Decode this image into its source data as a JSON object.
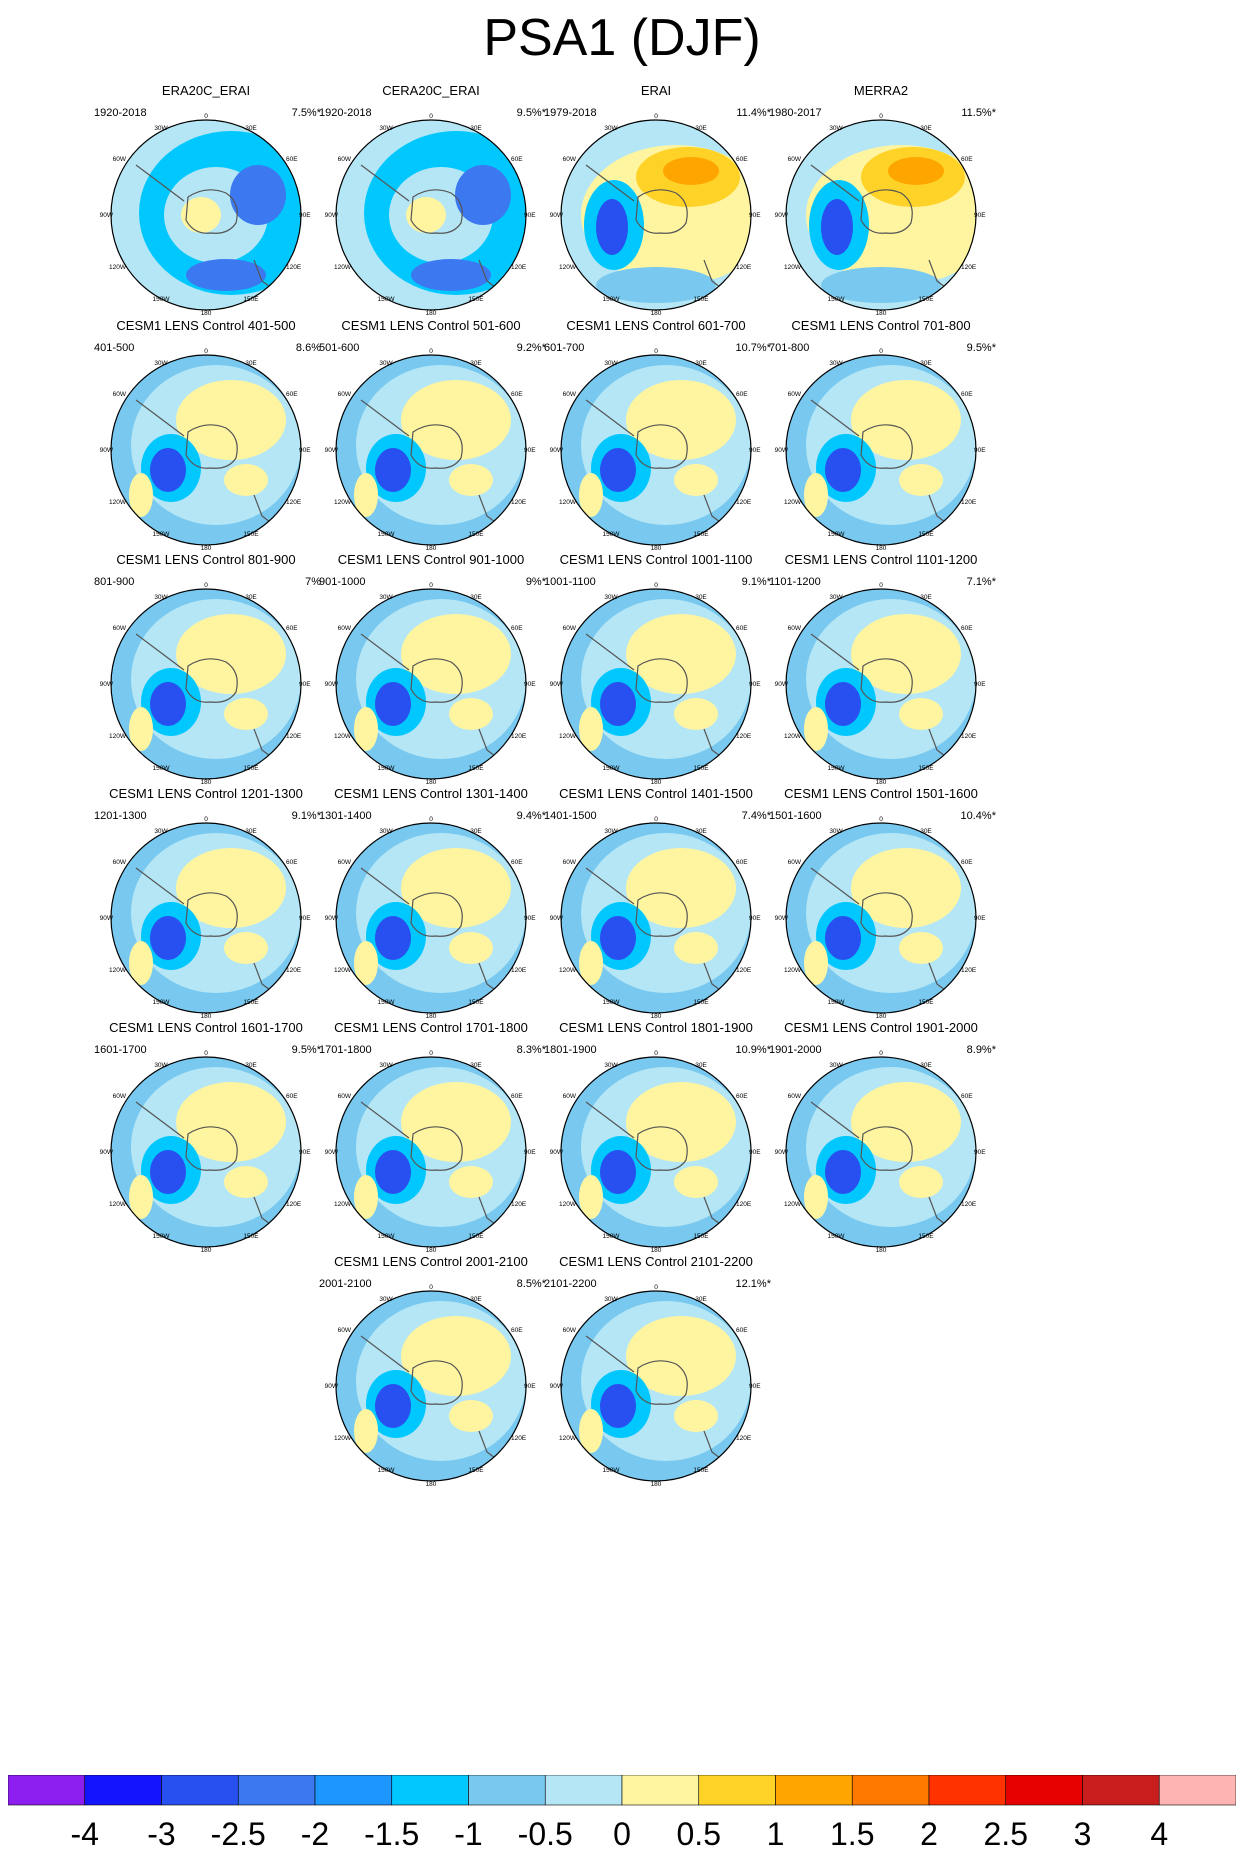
{
  "page_title": "PSA1 (DJF)",
  "panels": [
    {
      "title": "ERA20C_ERAI",
      "years": "1920-2018",
      "variance": "7.5%*",
      "pattern": "ring"
    },
    {
      "title": "CERA20C_ERAI",
      "years": "1920-2018",
      "variance": "9.5%*",
      "pattern": "ring"
    },
    {
      "title": "ERAI",
      "years": "1979-2018",
      "variance": "11.4%*",
      "pattern": "reanalysis"
    },
    {
      "title": "MERRA2",
      "years": "1980-2017",
      "variance": "11.5%*",
      "pattern": "reanalysis"
    },
    {
      "title": "CESM1 LENS Control 401-500",
      "years": "401-500",
      "variance": "8.6%",
      "pattern": "model"
    },
    {
      "title": "CESM1 LENS Control 501-600",
      "years": "501-600",
      "variance": "9.2%*",
      "pattern": "model"
    },
    {
      "title": "CESM1 LENS Control 601-700",
      "years": "601-700",
      "variance": "10.7%*",
      "pattern": "model"
    },
    {
      "title": "CESM1 LENS Control 701-800",
      "years": "701-800",
      "variance": "9.5%*",
      "pattern": "model"
    },
    {
      "title": "CESM1 LENS Control 801-900",
      "years": "801-900",
      "variance": "7%",
      "pattern": "model"
    },
    {
      "title": "CESM1 LENS Control 901-1000",
      "years": "901-1000",
      "variance": "9%*",
      "pattern": "model"
    },
    {
      "title": "CESM1 LENS Control 1001-1100",
      "years": "1001-1100",
      "variance": "9.1%*",
      "pattern": "model"
    },
    {
      "title": "CESM1 LENS Control 1101-1200",
      "years": "1101-1200",
      "variance": "7.1%*",
      "pattern": "model"
    },
    {
      "title": "CESM1 LENS Control 1201-1300",
      "years": "1201-1300",
      "variance": "9.1%*",
      "pattern": "model"
    },
    {
      "title": "CESM1 LENS Control 1301-1400",
      "years": "1301-1400",
      "variance": "9.4%*",
      "pattern": "model"
    },
    {
      "title": "CESM1 LENS Control 1401-1500",
      "years": "1401-1500",
      "variance": "7.4%*",
      "pattern": "model"
    },
    {
      "title": "CESM1 LENS Control 1501-1600",
      "years": "1501-1600",
      "variance": "10.4%*",
      "pattern": "model"
    },
    {
      "title": "CESM1 LENS Control 1601-1700",
      "years": "1601-1700",
      "variance": "9.5%*",
      "pattern": "model"
    },
    {
      "title": "CESM1 LENS Control 1701-1800",
      "years": "1701-1800",
      "variance": "8.3%*",
      "pattern": "model"
    },
    {
      "title": "CESM1 LENS Control 1801-1900",
      "years": "1801-1900",
      "variance": "10.9%*",
      "pattern": "model"
    },
    {
      "title": "CESM1 LENS Control 1901-2000",
      "years": "1901-2000",
      "variance": "8.9%*",
      "pattern": "model"
    },
    {
      "title": "CESM1 LENS Control 2001-2100",
      "years": "2001-2100",
      "variance": "8.5%*",
      "pattern": "model"
    },
    {
      "title": "CESM1 LENS Control 2101-2200",
      "years": "2101-2200",
      "variance": "12.1%*",
      "pattern": "model"
    }
  ],
  "map_labels": [
    "0",
    "30E",
    "60E",
    "90E",
    "120E",
    "150E",
    "180",
    "150W",
    "120W",
    "90W",
    "60W",
    "30W"
  ],
  "colorbar": {
    "labels": [
      "-4",
      "-3",
      "-2.5",
      "-2",
      "-1.5",
      "-1",
      "-0.5",
      "0",
      "0.5",
      "1",
      "1.5",
      "2",
      "2.5",
      "3",
      "4"
    ],
    "colors": [
      "#8c1ef0",
      "#1414ff",
      "#2850f0",
      "#3c78f0",
      "#1e96ff",
      "#00c8ff",
      "#78c8f0",
      "#b4e6f5",
      "#fff5a0",
      "#ffd228",
      "#ffa500",
      "#ff7800",
      "#ff3200",
      "#e60000",
      "#c81e1e",
      "#ffb4b4"
    ]
  },
  "chart_data": {
    "type": "heatmap",
    "title": "PSA1 (DJF)",
    "variable": "PSA1 pattern (DJF), south polar stereographic maps",
    "panels": [
      {
        "name": "ERA20C_ERAI",
        "years": "1920-2018",
        "variance_pct": 7.5,
        "significant": true
      },
      {
        "name": "CERA20C_ERAI",
        "years": "1920-2018",
        "variance_pct": 9.5,
        "significant": true
      },
      {
        "name": "ERAI",
        "years": "1979-2018",
        "variance_pct": 11.4,
        "significant": true
      },
      {
        "name": "MERRA2",
        "years": "1980-2017",
        "variance_pct": 11.5,
        "significant": true
      },
      {
        "name": "CESM1 LENS Control 401-500",
        "years": "401-500",
        "variance_pct": 8.6,
        "significant": false
      },
      {
        "name": "CESM1 LENS Control 501-600",
        "years": "501-600",
        "variance_pct": 9.2,
        "significant": true
      },
      {
        "name": "CESM1 LENS Control 601-700",
        "years": "601-700",
        "variance_pct": 10.7,
        "significant": true
      },
      {
        "name": "CESM1 LENS Control 701-800",
        "years": "701-800",
        "variance_pct": 9.5,
        "significant": true
      },
      {
        "name": "CESM1 LENS Control 801-900",
        "years": "801-900",
        "variance_pct": 7.0,
        "significant": false
      },
      {
        "name": "CESM1 LENS Control 901-1000",
        "years": "901-1000",
        "variance_pct": 9.0,
        "significant": true
      },
      {
        "name": "CESM1 LENS Control 1001-1100",
        "years": "1001-1100",
        "variance_pct": 9.1,
        "significant": true
      },
      {
        "name": "CESM1 LENS Control 1101-1200",
        "years": "1101-1200",
        "variance_pct": 7.1,
        "significant": true
      },
      {
        "name": "CESM1 LENS Control 1201-1300",
        "years": "1201-1300",
        "variance_pct": 9.1,
        "significant": true
      },
      {
        "name": "CESM1 LENS Control 1301-1400",
        "years": "1301-1400",
        "variance_pct": 9.4,
        "significant": true
      },
      {
        "name": "CESM1 LENS Control 1401-1500",
        "years": "1401-1500",
        "variance_pct": 7.4,
        "significant": true
      },
      {
        "name": "CESM1 LENS Control 1501-1600",
        "years": "1501-1600",
        "variance_pct": 10.4,
        "significant": true
      },
      {
        "name": "CESM1 LENS Control 1601-1700",
        "years": "1601-1700",
        "variance_pct": 9.5,
        "significant": true
      },
      {
        "name": "CESM1 LENS Control 1701-1800",
        "years": "1701-1800",
        "variance_pct": 8.3,
        "significant": true
      },
      {
        "name": "CESM1 LENS Control 1801-1900",
        "years": "1801-1900",
        "variance_pct": 10.9,
        "significant": true
      },
      {
        "name": "CESM1 LENS Control 1901-2000",
        "years": "1901-2000",
        "variance_pct": 8.9,
        "significant": true
      },
      {
        "name": "CESM1 LENS Control 2001-2100",
        "years": "2001-2100",
        "variance_pct": 8.5,
        "significant": true
      },
      {
        "name": "CESM1 LENS Control 2101-2200",
        "years": "2101-2200",
        "variance_pct": 12.1,
        "significant": true
      }
    ],
    "colorbar_levels": [
      -4,
      -3,
      -2.5,
      -2,
      -1.5,
      -1,
      -0.5,
      0,
      0.5,
      1,
      1.5,
      2,
      2.5,
      3,
      4
    ],
    "colorbar_position": "bottom"
  }
}
